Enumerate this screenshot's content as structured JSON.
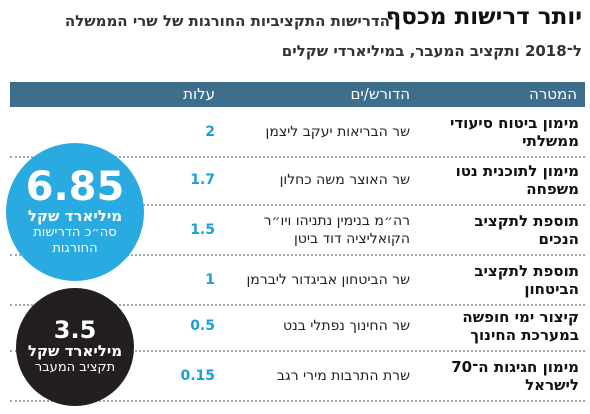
{
  "header": {
    "title": "יותר דרישות מכסף",
    "subtitle_1": "הדרישות התקציביות החורגות של שרי הממשלה",
    "subtitle_2": "ל־2018 ותקציב המעבר, במיליארדי שקלים"
  },
  "table": {
    "columns": [
      "המטרה",
      "הדורש/ים",
      "עלות"
    ],
    "rows": [
      [
        "מימון ביטוח סיעודי ממשלתי",
        "שר הבריאות יעקב ליצמן",
        "2"
      ],
      [
        "מימון לתוכנית נטו משפחה",
        "שר האוצר משה כחלון",
        "1.7"
      ],
      [
        "תוספת לתקציב הנכים",
        "רה״מ בנימין נתניהו ויו״ר הקואליציה דוד ביטן",
        "1.5"
      ],
      [
        "תוספת לתקציב הביטחון",
        "שר הביטחון אביגדור ליברמן",
        "1"
      ],
      [
        "קיצור ימי חופשה במערכת החינוך",
        "שר החינוך נפתלי בנט",
        "0.5"
      ],
      [
        "מימון חגיגות ה־70 לישראל",
        "שרת התרבות מירי רגב",
        "0.15"
      ]
    ]
  },
  "totals": [
    {
      "value": "6.85",
      "unit": "מיליארד שקל",
      "label": "סה״כ הדרישות החורגות"
    },
    {
      "value": "3.5",
      "unit": "מיליארד שקל",
      "label": "תקציב המעבר"
    }
  ]
}
